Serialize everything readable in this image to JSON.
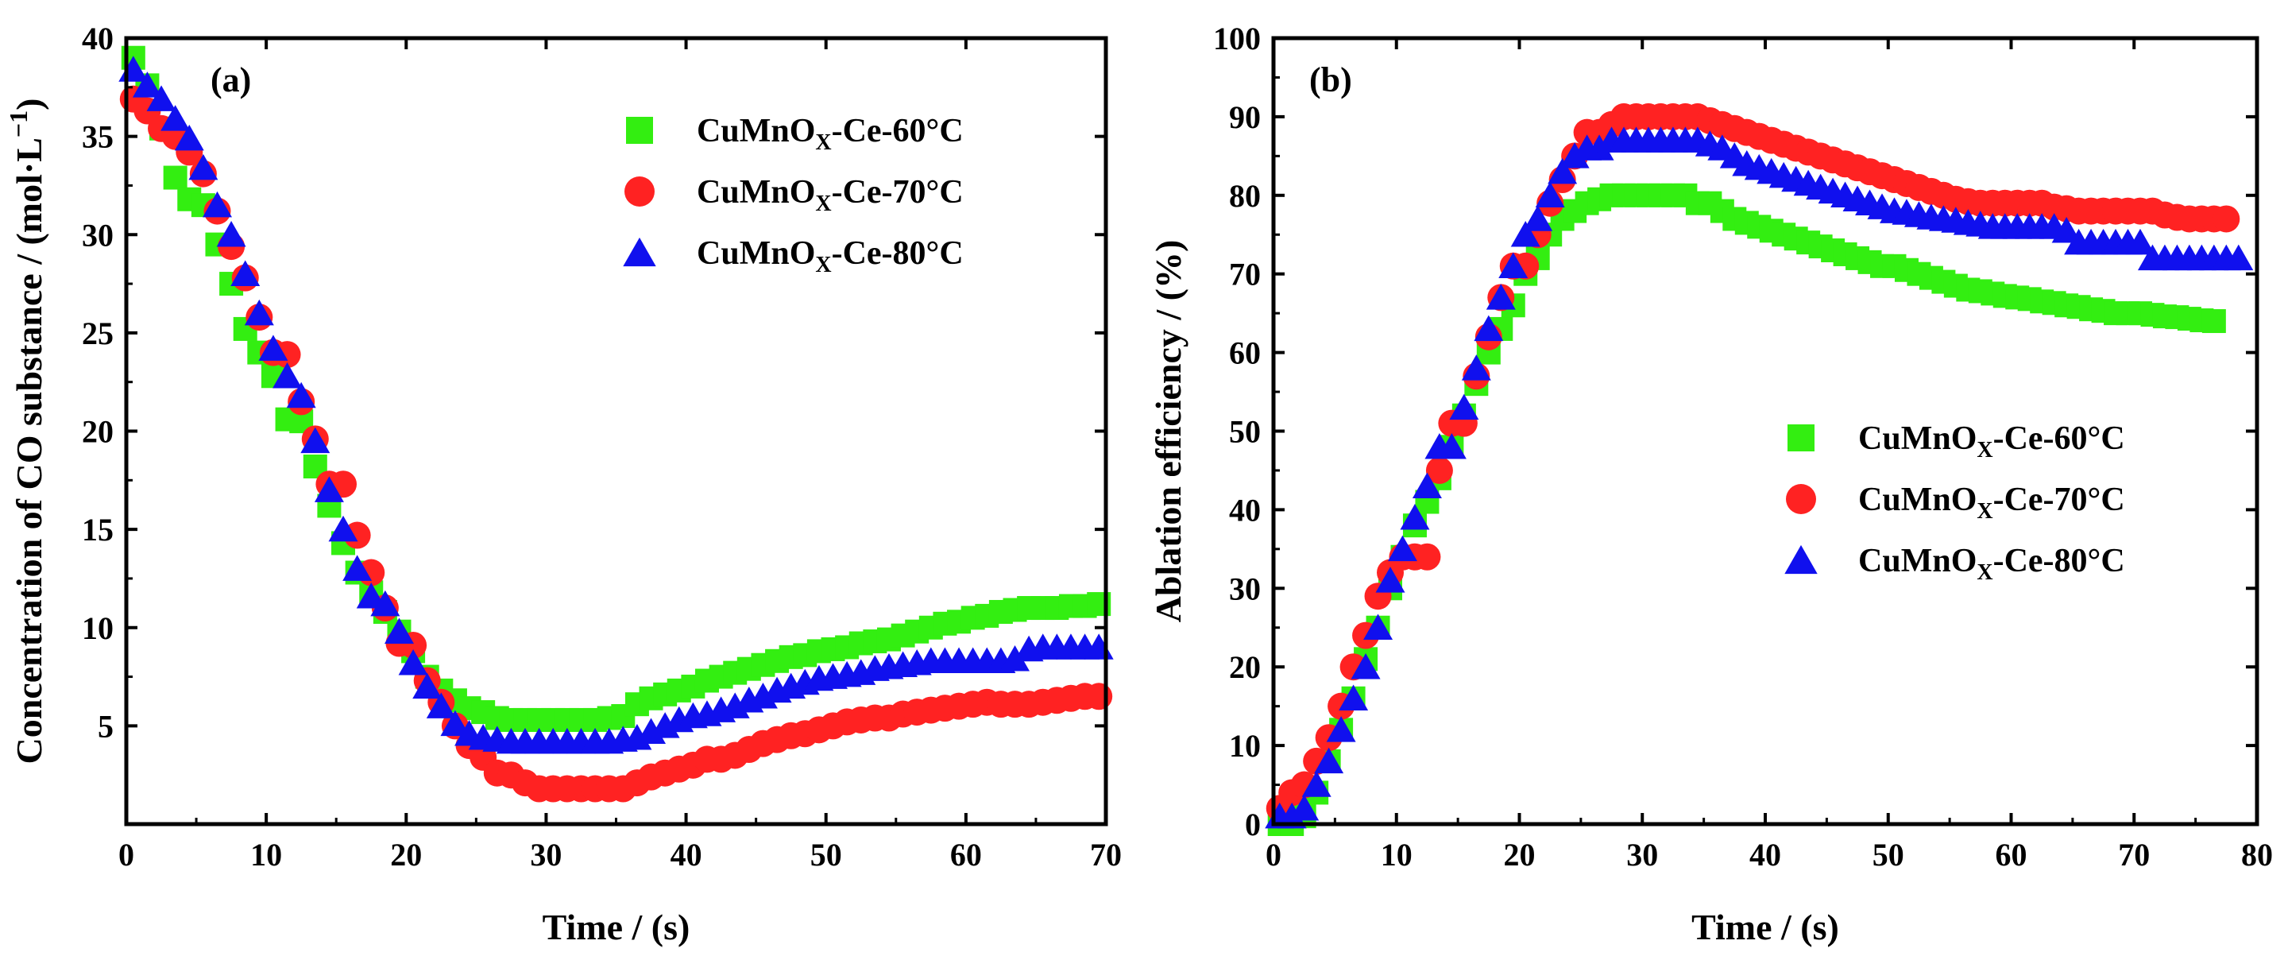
{
  "chart_data": [
    {
      "type": "scatter",
      "panel_label": "(a)",
      "title": "",
      "xlabel": "Time / (s)",
      "ylabel": "Concentration of CO substance / (mol·L",
      "ylabel_sup": "−1",
      "ylabel_tail": ")",
      "xlim": [
        0,
        70
      ],
      "ylim": [
        0,
        40
      ],
      "xticks": [
        0,
        10,
        20,
        30,
        40,
        50,
        60,
        70
      ],
      "yticks": [
        5,
        10,
        15,
        20,
        25,
        30,
        35,
        40
      ],
      "legend_position": "top-right",
      "series": [
        {
          "name": "CuMnO",
          "sub": "X",
          "suffix": "-Ce-60°C",
          "marker": "square",
          "color": "#33ee11",
          "x": [
            0.5,
            1.5,
            2.5,
            3.5,
            4.5,
            5.5,
            6.5,
            7.5,
            8.5,
            9.5,
            10.5,
            11.5,
            12.5,
            13.5,
            14.5,
            15.5,
            16.5,
            17.5,
            18.5,
            19.5,
            20.5,
            21.5,
            22.5,
            23.5,
            24.5,
            25.5,
            26.5,
            27.5,
            28.5,
            29.5,
            30.5,
            31.5,
            32.5,
            33.5,
            34.5,
            35.5,
            36.5,
            37.5,
            38.5,
            39.5,
            40.5,
            41.5,
            42.5,
            43.5,
            44.5,
            45.5,
            46.5,
            47.5,
            48.5,
            49.5,
            50.5,
            51.5,
            52.5,
            53.5,
            54.5,
            55.5,
            56.5,
            57.5,
            58.5,
            59.5,
            60.5,
            61.5,
            62.5,
            63.5,
            64.5,
            65.5,
            66.5,
            67.5,
            68.5,
            69.5
          ],
          "y": [
            39.0,
            37.6,
            35.4,
            32.9,
            31.8,
            31.5,
            29.5,
            27.5,
            25.2,
            24.0,
            22.8,
            20.6,
            20.5,
            18.2,
            16.2,
            14.3,
            12.8,
            11.8,
            10.8,
            9.8,
            8.8,
            7.5,
            6.8,
            6.3,
            5.9,
            5.7,
            5.4,
            5.3,
            5.3,
            5.3,
            5.3,
            5.3,
            5.3,
            5.3,
            5.4,
            5.5,
            6.1,
            6.4,
            6.6,
            6.8,
            7.0,
            7.3,
            7.5,
            7.7,
            7.9,
            8.1,
            8.3,
            8.5,
            8.6,
            8.8,
            8.9,
            9.0,
            9.2,
            9.3,
            9.4,
            9.6,
            9.8,
            10.0,
            10.2,
            10.3,
            10.5,
            10.6,
            10.8,
            10.9,
            11.0,
            11.0,
            11.0,
            11.1,
            11.1,
            11.2
          ]
        },
        {
          "name": "CuMnO",
          "sub": "X",
          "suffix": "-Ce-70°C",
          "marker": "circle",
          "color": "#ff2222",
          "x": [
            0.5,
            1.5,
            2.5,
            3.5,
            4.5,
            5.5,
            6.5,
            7.5,
            8.5,
            9.5,
            10.5,
            11.5,
            12.5,
            13.5,
            14.5,
            15.5,
            16.5,
            17.5,
            18.5,
            19.5,
            20.5,
            21.5,
            22.5,
            23.5,
            24.5,
            25.5,
            26.5,
            27.5,
            28.5,
            29.5,
            30.5,
            31.5,
            32.5,
            33.5,
            34.5,
            35.5,
            36.5,
            37.5,
            38.5,
            39.5,
            40.5,
            41.5,
            42.5,
            43.5,
            44.5,
            45.5,
            46.5,
            47.5,
            48.5,
            49.5,
            50.5,
            51.5,
            52.5,
            53.5,
            54.5,
            55.5,
            56.5,
            57.5,
            58.5,
            59.5,
            60.5,
            61.5,
            62.5,
            63.5,
            64.5,
            65.5,
            66.5,
            67.5,
            68.5,
            69.5
          ],
          "y": [
            36.9,
            36.3,
            35.4,
            35.0,
            34.2,
            33.1,
            31.2,
            29.4,
            27.8,
            25.8,
            24.0,
            23.9,
            21.5,
            19.6,
            17.3,
            17.3,
            14.7,
            12.8,
            11.0,
            9.2,
            9.1,
            7.3,
            6.2,
            5.0,
            4.0,
            3.4,
            2.6,
            2.5,
            2.1,
            1.8,
            1.8,
            1.8,
            1.8,
            1.8,
            1.8,
            1.8,
            2.1,
            2.4,
            2.6,
            2.8,
            3.0,
            3.3,
            3.3,
            3.5,
            3.8,
            4.1,
            4.3,
            4.5,
            4.6,
            4.8,
            5.0,
            5.2,
            5.3,
            5.4,
            5.4,
            5.6,
            5.7,
            5.8,
            5.9,
            6.0,
            6.1,
            6.2,
            6.1,
            6.1,
            6.1,
            6.2,
            6.3,
            6.4,
            6.5,
            6.5
          ]
        },
        {
          "name": "CuMnO",
          "sub": "X",
          "suffix": "-Ce-80°C",
          "marker": "triangle",
          "color": "#1010ee",
          "x": [
            0.5,
            1.5,
            2.5,
            3.5,
            4.5,
            5.5,
            6.5,
            7.5,
            8.5,
            9.5,
            10.5,
            11.5,
            12.5,
            13.5,
            14.5,
            15.5,
            16.5,
            17.5,
            18.5,
            19.5,
            20.5,
            21.5,
            22.5,
            23.5,
            24.5,
            25.5,
            26.5,
            27.5,
            28.5,
            29.5,
            30.5,
            31.5,
            32.5,
            33.5,
            34.5,
            35.5,
            36.5,
            37.5,
            38.5,
            39.5,
            40.5,
            41.5,
            42.5,
            43.5,
            44.5,
            45.5,
            46.5,
            47.5,
            48.5,
            49.5,
            50.5,
            51.5,
            52.5,
            53.5,
            54.5,
            55.5,
            56.5,
            57.5,
            58.5,
            59.5,
            60.5,
            61.5,
            62.5,
            63.5,
            64.5,
            65.5,
            66.5,
            67.5,
            68.5,
            69.5
          ],
          "y": [
            38.4,
            37.6,
            36.9,
            35.9,
            34.9,
            33.4,
            31.5,
            30.0,
            28.0,
            26.0,
            24.2,
            22.8,
            21.8,
            19.5,
            17.0,
            15.0,
            13.0,
            11.6,
            11.2,
            9.8,
            8.2,
            7.0,
            6.0,
            5.1,
            4.6,
            4.4,
            4.3,
            4.2,
            4.2,
            4.2,
            4.2,
            4.2,
            4.2,
            4.2,
            4.2,
            4.3,
            4.4,
            4.7,
            5.0,
            5.3,
            5.5,
            5.6,
            5.8,
            6.0,
            6.3,
            6.5,
            6.8,
            7.0,
            7.2,
            7.4,
            7.5,
            7.6,
            7.7,
            7.9,
            8.0,
            8.1,
            8.2,
            8.3,
            8.3,
            8.3,
            8.3,
            8.3,
            8.3,
            8.4,
            8.9,
            9.0,
            9.0,
            9.0,
            9.0,
            9.0
          ]
        }
      ]
    },
    {
      "type": "scatter",
      "panel_label": "(b)",
      "title": "",
      "xlabel": "Time / (s)",
      "ylabel": "Ablation efficiency / (%)",
      "xlim": [
        0,
        80
      ],
      "ylim": [
        0,
        100
      ],
      "xticks": [
        0,
        10,
        20,
        30,
        40,
        50,
        60,
        70,
        80
      ],
      "yticks": [
        0,
        10,
        20,
        30,
        40,
        50,
        60,
        70,
        80,
        90,
        100
      ],
      "legend_position": "center-right",
      "series": [
        {
          "name": "CuMnO",
          "sub": "X",
          "suffix": "-Ce-60°C",
          "marker": "square",
          "color": "#33ee11",
          "x": [
            0.5,
            1.5,
            2.5,
            3.5,
            4.5,
            5.5,
            6.5,
            7.5,
            8.5,
            9.5,
            10.5,
            11.5,
            12.5,
            13.5,
            14.5,
            15.5,
            16.5,
            17.5,
            18.5,
            19.5,
            20.5,
            21.5,
            22.5,
            23.5,
            24.5,
            25.5,
            26.5,
            27.5,
            28.5,
            29.5,
            30.5,
            31.5,
            32.5,
            33.5,
            34.5,
            35.5,
            36.5,
            37.5,
            38.5,
            39.5,
            40.5,
            41.5,
            42.5,
            43.5,
            44.5,
            45.5,
            46.5,
            47.5,
            48.5,
            49.5,
            50.5,
            51.5,
            52.5,
            53.5,
            54.5,
            55.5,
            56.5,
            57.5,
            58.5,
            59.5,
            60.5,
            61.5,
            62.5,
            63.5,
            64.5,
            65.5,
            66.5,
            67.5,
            68.5,
            69.5,
            70.5,
            71.5,
            72.5,
            73.5,
            74.5,
            75.5,
            76.5
          ],
          "y": [
            0.0,
            0.0,
            1.0,
            4.0,
            8.0,
            12.0,
            16.0,
            21.0,
            25.0,
            30.0,
            34.0,
            38.0,
            41.0,
            44.0,
            48.0,
            52.0,
            56.0,
            60.0,
            63.0,
            66.0,
            70.0,
            72.0,
            75.0,
            77.0,
            78.0,
            79.0,
            79.5,
            80.0,
            80.0,
            80.0,
            80.0,
            80.0,
            80.0,
            80.0,
            79.0,
            79.0,
            78.0,
            77.0,
            76.5,
            76.0,
            75.5,
            75.0,
            74.5,
            74.0,
            73.5,
            73.0,
            72.5,
            72.0,
            71.5,
            71.0,
            71.0,
            70.5,
            70.0,
            69.5,
            69.0,
            68.5,
            68.0,
            67.8,
            67.5,
            67.2,
            67.0,
            66.8,
            66.5,
            66.3,
            66.0,
            65.8,
            65.5,
            65.3,
            65.0,
            65.0,
            65.0,
            64.8,
            64.6,
            64.5,
            64.3,
            64.1,
            64.0
          ]
        },
        {
          "name": "CuMnO",
          "sub": "X",
          "suffix": "-Ce-70°C",
          "marker": "circle",
          "color": "#ff2222",
          "x": [
            0.5,
            1.5,
            2.5,
            3.5,
            4.5,
            5.5,
            6.5,
            7.5,
            8.5,
            9.5,
            10.5,
            11.5,
            12.5,
            13.5,
            14.5,
            15.5,
            16.5,
            17.5,
            18.5,
            19.5,
            20.5,
            21.5,
            22.5,
            23.5,
            24.5,
            25.5,
            26.5,
            27.5,
            28.5,
            29.5,
            30.5,
            31.5,
            32.5,
            33.5,
            34.5,
            35.5,
            36.5,
            37.5,
            38.5,
            39.5,
            40.5,
            41.5,
            42.5,
            43.5,
            44.5,
            45.5,
            46.5,
            47.5,
            48.5,
            49.5,
            50.5,
            51.5,
            52.5,
            53.5,
            54.5,
            55.5,
            56.5,
            57.5,
            58.5,
            59.5,
            60.5,
            61.5,
            62.5,
            63.5,
            64.5,
            65.5,
            66.5,
            67.5,
            68.5,
            69.5,
            70.5,
            71.5,
            72.5,
            73.5,
            74.5,
            75.5,
            76.5,
            77.5
          ],
          "y": [
            2.0,
            4.0,
            5.0,
            8.0,
            11.0,
            15.0,
            20.0,
            24.0,
            29.0,
            32.0,
            34.0,
            34.0,
            34.0,
            45.0,
            51.0,
            51.0,
            57.0,
            62.0,
            67.0,
            71.0,
            71.0,
            75.0,
            79.0,
            82.0,
            85.0,
            88.0,
            88.0,
            89.0,
            90.0,
            90.0,
            90.0,
            90.0,
            90.0,
            90.0,
            90.0,
            89.5,
            89.0,
            88.5,
            88.0,
            87.5,
            87.0,
            86.5,
            86.0,
            85.5,
            85.0,
            84.5,
            84.0,
            83.5,
            83.0,
            82.5,
            82.0,
            81.5,
            81.0,
            80.5,
            80.0,
            79.5,
            79.2,
            79.0,
            79.0,
            79.0,
            79.0,
            79.0,
            79.0,
            78.5,
            78.3,
            78.0,
            78.0,
            78.0,
            78.0,
            78.0,
            78.0,
            78.0,
            77.5,
            77.2,
            77.0,
            77.0,
            77.0,
            77.0
          ]
        },
        {
          "name": "CuMnO",
          "sub": "X",
          "suffix": "-Ce-80°C",
          "marker": "triangle",
          "color": "#1010ee",
          "x": [
            0.5,
            1.5,
            2.5,
            3.5,
            4.5,
            5.5,
            6.5,
            7.5,
            8.5,
            9.5,
            10.5,
            11.5,
            12.5,
            13.5,
            14.5,
            15.5,
            16.5,
            17.5,
            18.5,
            19.5,
            20.5,
            21.5,
            22.5,
            23.5,
            24.5,
            25.5,
            26.5,
            27.5,
            28.5,
            29.5,
            30.5,
            31.5,
            32.5,
            33.5,
            34.5,
            35.5,
            36.5,
            37.5,
            38.5,
            39.5,
            40.5,
            41.5,
            42.5,
            43.5,
            44.5,
            45.5,
            46.5,
            47.5,
            48.5,
            49.5,
            50.5,
            51.5,
            52.5,
            53.5,
            54.5,
            55.5,
            56.5,
            57.5,
            58.5,
            59.5,
            60.5,
            61.5,
            62.5,
            63.5,
            64.5,
            65.5,
            66.5,
            67.5,
            68.5,
            69.5,
            70.5,
            71.5,
            72.5,
            73.5,
            74.5,
            75.5,
            76.5,
            77.5,
            78.5
          ],
          "y": [
            1.0,
            1.0,
            2.0,
            5.0,
            8.0,
            12.0,
            16.0,
            20.0,
            25.0,
            31.0,
            35.0,
            39.0,
            43.0,
            48.0,
            48.0,
            53.0,
            58.0,
            63.0,
            67.0,
            71.0,
            75.0,
            77.0,
            80.0,
            83.0,
            85.0,
            86.0,
            86.0,
            87.0,
            87.0,
            87.0,
            87.0,
            87.0,
            87.0,
            87.0,
            87.0,
            86.5,
            86.0,
            85.0,
            84.0,
            83.5,
            83.0,
            82.5,
            82.0,
            81.5,
            81.0,
            80.5,
            80.0,
            79.5,
            79.0,
            78.5,
            78.0,
            77.8,
            77.5,
            77.2,
            77.0,
            76.8,
            76.5,
            76.3,
            76.0,
            76.0,
            76.0,
            76.0,
            76.0,
            76.0,
            75.5,
            74.0,
            74.0,
            74.0,
            74.0,
            74.0,
            74.0,
            72.0,
            72.0,
            72.0,
            72.0,
            72.0,
            72.0,
            72.0,
            72.0
          ]
        }
      ]
    }
  ]
}
